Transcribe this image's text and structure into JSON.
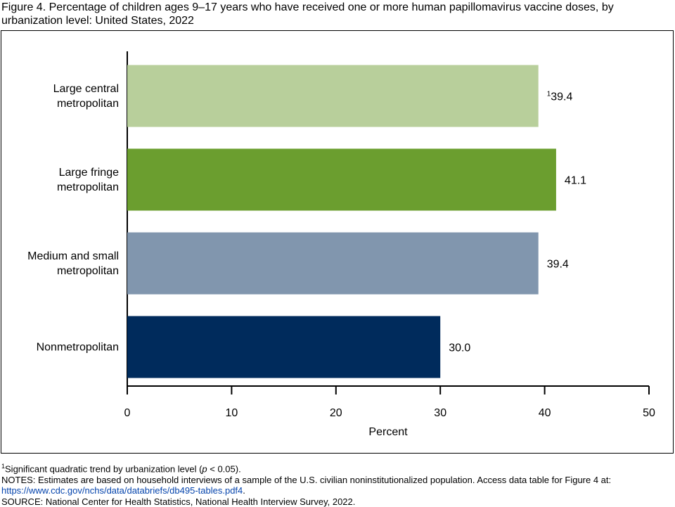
{
  "chart_data": {
    "type": "barh",
    "title": "Figure 4. Percentage of children ages 9–17 years who have received one or more human papillomavirus vaccine doses, by urbanization level: United States, 2022",
    "categories": [
      "Large central metropolitan",
      "Large fringe metropolitan",
      "Medium and small metropolitan",
      "Nonmetropolitan"
    ],
    "values": [
      39.4,
      41.1,
      39.4,
      30.0
    ],
    "value_labels": [
      "39.4",
      "41.1",
      "39.4",
      "30.0"
    ],
    "footnote_marks": [
      {
        "index": 0,
        "mark": "1"
      }
    ],
    "colors": [
      "#b8cf9b",
      "#6b9e2f",
      "#8196ae",
      "#002b5c"
    ],
    "xlabel": "Percent",
    "xlim": [
      0,
      50
    ],
    "xticks": [
      0,
      10,
      20,
      30,
      40,
      50
    ]
  },
  "footnotes": {
    "note1": {
      "mark": "1",
      "before": "Significant quadratic trend by urbanization level (",
      "italic": "p",
      "after": " < 0.05)."
    },
    "notes": "NOTES: Estimates are based on household interviews of a sample of the U.S. civilian noninstitutionalized population. Access data table for Figure 4 at:",
    "link": "https://www.cdc.gov/nchs/data/databriefs/db495-tables.pdf4",
    "link_end": ".",
    "source": "SOURCE: National Center for Health Statistics, National Health Interview Survey, 2022."
  }
}
